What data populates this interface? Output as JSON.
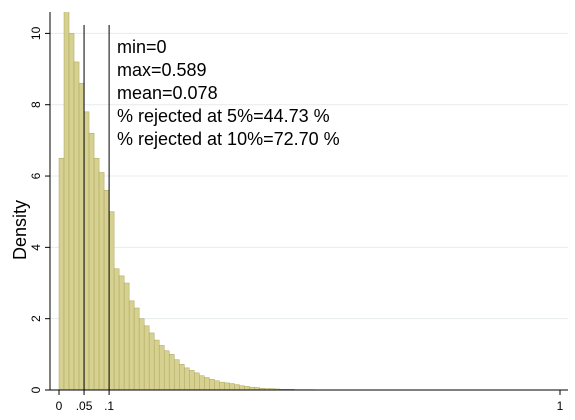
{
  "chart_data": {
    "type": "histogram",
    "ylabel": "Density",
    "bins": [
      0,
      0.01,
      0.02,
      0.03,
      0.04,
      0.05,
      0.06,
      0.07,
      0.08,
      0.09,
      0.1,
      0.11,
      0.12,
      0.13,
      0.14,
      0.15,
      0.16,
      0.17,
      0.18,
      0.19,
      0.2,
      0.21,
      0.22,
      0.23,
      0.24,
      0.25,
      0.26,
      0.27,
      0.28,
      0.29,
      0.3,
      0.31,
      0.32,
      0.33,
      0.34,
      0.35,
      0.36,
      0.37,
      0.38,
      0.39,
      0.4,
      0.41,
      0.42,
      0.43,
      0.44,
      0.45,
      0.46,
      0.47,
      0.48,
      0.49,
      0.5,
      0.51,
      0.52,
      0.53,
      0.54,
      0.55,
      0.56,
      0.57,
      0.58,
      0.59
    ],
    "values": [
      6.5,
      11,
      10.0,
      9.2,
      8.6,
      7.8,
      7.2,
      6.5,
      6.1,
      5.6,
      5.0,
      3.4,
      3.2,
      3.0,
      2.5,
      2.3,
      2.0,
      1.8,
      1.6,
      1.4,
      1.25,
      1.1,
      1.0,
      0.85,
      0.72,
      0.62,
      0.55,
      0.48,
      0.4,
      0.35,
      0.3,
      0.26,
      0.22,
      0.2,
      0.18,
      0.15,
      0.12,
      0.1,
      0.08,
      0.07,
      0.05,
      0.04,
      0.04,
      0.03,
      0.02,
      0.02,
      0.02,
      0.01,
      0.01,
      0.01,
      0.01,
      0.005,
      0.005,
      0.005,
      0.005,
      0.005,
      0.005,
      0.005,
      0.005
    ],
    "color": "#d6d191",
    "edge_color": "#aaa45a",
    "vlines": [
      0.05,
      0.1
    ],
    "annotations": [
      "min=0",
      "max=0.589",
      "mean=0.078",
      "% rejected at 5%=44.73 %",
      "% rejected at 10%=72.70 %"
    ],
    "xlim": [
      0,
      1
    ],
    "xticks": [
      0,
      {
        "value": 0.05,
        "label": ".05"
      },
      {
        "value": 0.1,
        "label": ".1"
      },
      1
    ],
    "ylim": [
      0,
      10.6
    ],
    "yticks": [
      0,
      2,
      4,
      6,
      8,
      10
    ],
    "grid": true
  }
}
